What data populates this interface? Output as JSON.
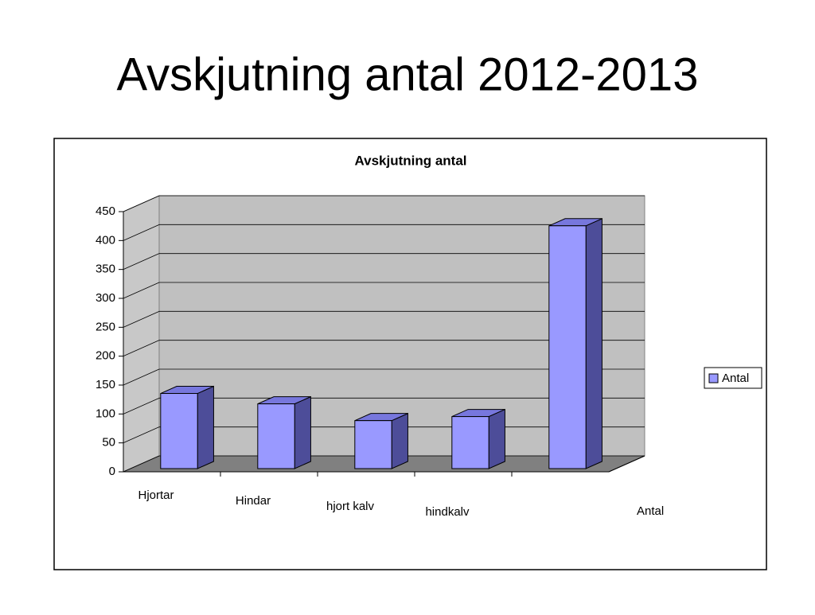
{
  "title": "Avskjutning antal 2012-2013",
  "chart_data": {
    "type": "bar3d",
    "title": "Avskjutning antal",
    "categories": [
      "Hjortar",
      "Hindar",
      "hjort kalv",
      "hindkalv",
      null
    ],
    "series": [
      {
        "name": "Antal",
        "color": "#9999ff",
        "values": [
          130,
          112,
          83,
          90,
          420
        ]
      }
    ],
    "ylim": [
      0,
      450
    ],
    "yticks": [
      0,
      50,
      100,
      150,
      200,
      250,
      300,
      350,
      400,
      450
    ],
    "grid": true,
    "legend": "right"
  }
}
